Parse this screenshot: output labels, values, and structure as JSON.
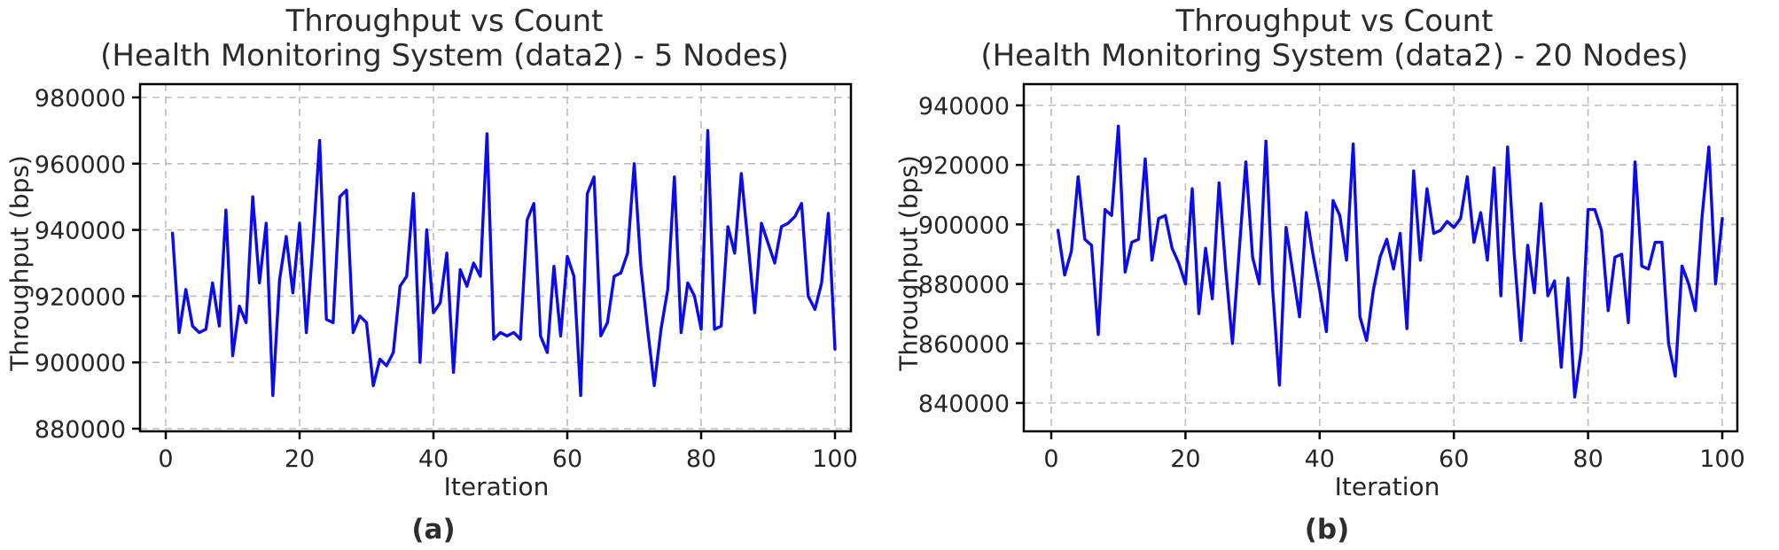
{
  "figure": {
    "background_color": "#ffffff",
    "line_color": "#0b0bee",
    "grid_color": "#bdbdbd",
    "spine_color": "#000000",
    "text_color": "#262626"
  },
  "chart_data": [
    {
      "id": "a",
      "type": "line",
      "caption": "(a)",
      "title_line1": "Throughput vs Count",
      "title_line2": "(Health Monitoring System (data2) - 5 Nodes)",
      "xlabel": "Iteration",
      "ylabel": "Throughput (bps)",
      "x_ticks": [
        0,
        20,
        40,
        60,
        80,
        100
      ],
      "y_ticks": [
        880000,
        900000,
        920000,
        940000,
        960000,
        980000
      ],
      "ylim": [
        880000,
        985000
      ],
      "x_range": [
        1,
        100
      ],
      "grid": "dashed",
      "legend": "none",
      "values": [
        939000,
        909000,
        922000,
        911000,
        909000,
        910000,
        924000,
        911000,
        946000,
        902000,
        917000,
        912000,
        950000,
        924000,
        942000,
        890000,
        925000,
        938000,
        921000,
        942000,
        909000,
        936000,
        967000,
        913000,
        912000,
        950000,
        952000,
        909000,
        914000,
        912000,
        893000,
        901000,
        899000,
        903000,
        923000,
        926000,
        951000,
        900000,
        940000,
        915000,
        918000,
        933000,
        897000,
        928000,
        923000,
        930000,
        926000,
        969000,
        907000,
        909000,
        908000,
        909000,
        907000,
        943000,
        948000,
        908000,
        903000,
        929000,
        908000,
        932000,
        926000,
        890000,
        951000,
        956000,
        908000,
        912000,
        926000,
        927000,
        933000,
        960000,
        929000,
        910000,
        893000,
        910000,
        922000,
        956000,
        909000,
        924000,
        920000,
        910000,
        970000,
        910000,
        911000,
        941000,
        933000,
        957000,
        936000,
        915000,
        942000,
        936000,
        930000,
        941000,
        942000,
        944000,
        948000,
        920000,
        916000,
        924000,
        945000,
        904000
      ]
    },
    {
      "id": "b",
      "type": "line",
      "caption": "(b)",
      "title_line1": "Throughput vs Count",
      "title_line2": "(Health Monitoring System (data2) - 20 Nodes)",
      "xlabel": "Iteration",
      "ylabel": "Throughput (bps)",
      "x_ticks": [
        0,
        20,
        40,
        60,
        80,
        100
      ],
      "y_ticks": [
        840000,
        860000,
        880000,
        900000,
        920000,
        940000
      ],
      "ylim": [
        835000,
        945000
      ],
      "x_range": [
        1,
        100
      ],
      "grid": "dashed",
      "legend": "none",
      "values": [
        898000,
        883000,
        891000,
        916000,
        895000,
        893000,
        863000,
        905000,
        903000,
        933000,
        884000,
        894000,
        895000,
        922000,
        888000,
        902000,
        903000,
        892000,
        887000,
        880000,
        912000,
        870000,
        892000,
        875000,
        914000,
        885000,
        860000,
        891000,
        921000,
        889000,
        880000,
        928000,
        878000,
        846000,
        899000,
        884000,
        869000,
        904000,
        890000,
        878000,
        864000,
        908000,
        903000,
        888000,
        927000,
        869000,
        861000,
        878000,
        889000,
        895000,
        885000,
        897000,
        865000,
        918000,
        888000,
        912000,
        897000,
        898000,
        901000,
        899000,
        902000,
        916000,
        894000,
        904000,
        888000,
        919000,
        876000,
        926000,
        890000,
        861000,
        893000,
        877000,
        907000,
        876000,
        881000,
        852000,
        882000,
        842000,
        858000,
        905000,
        905000,
        898000,
        871000,
        889000,
        890000,
        867000,
        921000,
        886000,
        885000,
        894000,
        894000,
        860000,
        849000,
        886000,
        880000,
        871000,
        903000,
        926000,
        880000,
        902000
      ]
    }
  ]
}
